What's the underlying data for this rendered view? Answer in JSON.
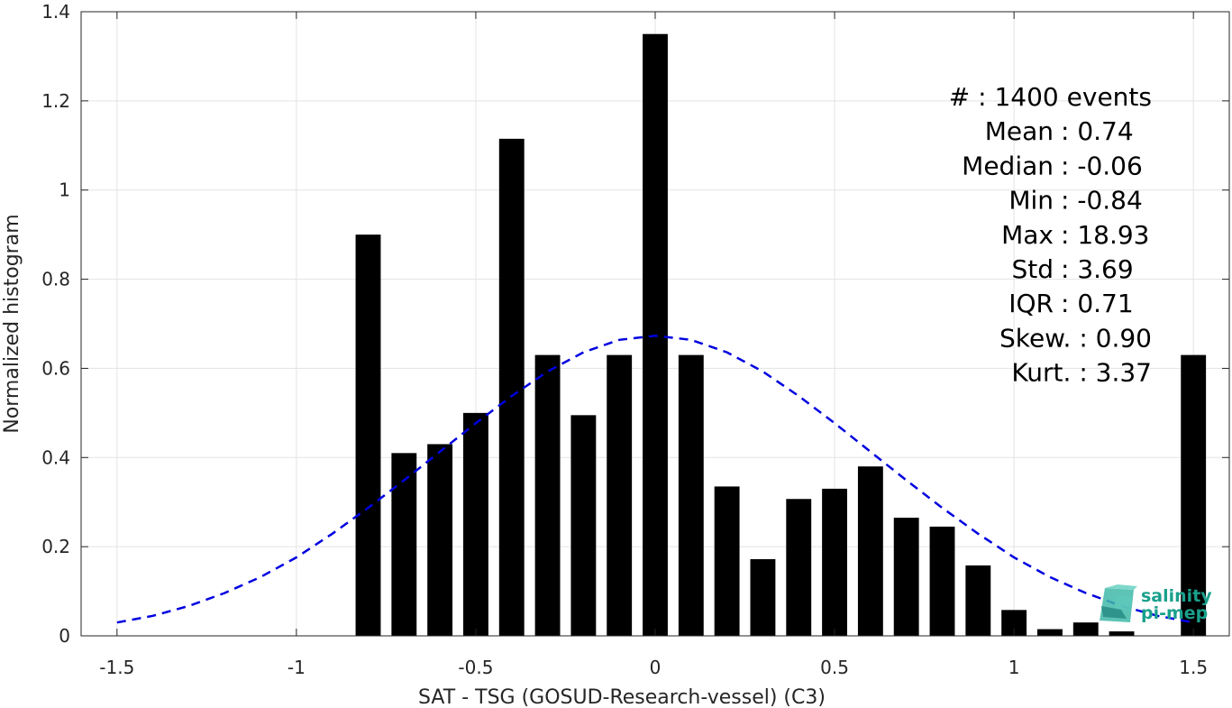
{
  "chart_data": {
    "type": "bar",
    "xlabel": "SAT - TSG (GOSUD-Research-vessel) (C3)",
    "ylabel": "Normalized histogram",
    "xlim": [
      -1.6,
      1.6
    ],
    "ylim": [
      0,
      1.4
    ],
    "xticks": [
      -1.5,
      -1,
      -0.5,
      0,
      0.5,
      1,
      1.5
    ],
    "xtick_labels": [
      "-1.5",
      "-1",
      "-0.5",
      "0",
      "0.5",
      "1",
      "1.5"
    ],
    "yticks": [
      0,
      0.2,
      0.4,
      0.6,
      0.8,
      1,
      1.2,
      1.4
    ],
    "ytick_labels": [
      "0",
      "0.2",
      "0.4",
      "0.6",
      "0.8",
      "1",
      "1.2",
      "1.4"
    ],
    "grid": true,
    "bar_width": 0.07,
    "bars": [
      {
        "x": -0.8,
        "y": 0.9
      },
      {
        "x": -0.7,
        "y": 0.41
      },
      {
        "x": -0.6,
        "y": 0.43
      },
      {
        "x": -0.5,
        "y": 0.5
      },
      {
        "x": -0.4,
        "y": 1.115
      },
      {
        "x": -0.3,
        "y": 0.63
      },
      {
        "x": -0.2,
        "y": 0.495
      },
      {
        "x": -0.1,
        "y": 0.63
      },
      {
        "x": 0.0,
        "y": 1.35
      },
      {
        "x": 0.1,
        "y": 0.63
      },
      {
        "x": 0.2,
        "y": 0.335
      },
      {
        "x": 0.3,
        "y": 0.172
      },
      {
        "x": 0.4,
        "y": 0.307
      },
      {
        "x": 0.5,
        "y": 0.33
      },
      {
        "x": 0.6,
        "y": 0.38
      },
      {
        "x": 0.7,
        "y": 0.265
      },
      {
        "x": 0.8,
        "y": 0.245
      },
      {
        "x": 0.9,
        "y": 0.158
      },
      {
        "x": 1.0,
        "y": 0.058
      },
      {
        "x": 1.1,
        "y": 0.015
      },
      {
        "x": 1.2,
        "y": 0.03
      },
      {
        "x": 1.3,
        "y": 0.01
      },
      {
        "x": 1.5,
        "y": 0.63
      }
    ],
    "fit_curve": {
      "style": "dashed",
      "color": "#0000e0",
      "points": [
        [
          -1.5,
          0.03
        ],
        [
          -1.4,
          0.045
        ],
        [
          -1.3,
          0.067
        ],
        [
          -1.2,
          0.096
        ],
        [
          -1.1,
          0.132
        ],
        [
          -1.0,
          0.176
        ],
        [
          -0.9,
          0.229
        ],
        [
          -0.8,
          0.287
        ],
        [
          -0.7,
          0.349
        ],
        [
          -0.6,
          0.413
        ],
        [
          -0.5,
          0.477
        ],
        [
          -0.4,
          0.538
        ],
        [
          -0.3,
          0.593
        ],
        [
          -0.2,
          0.636
        ],
        [
          -0.1,
          0.664
        ],
        [
          0.0,
          0.673
        ],
        [
          0.1,
          0.664
        ],
        [
          0.2,
          0.636
        ],
        [
          0.3,
          0.593
        ],
        [
          0.4,
          0.538
        ],
        [
          0.5,
          0.477
        ],
        [
          0.6,
          0.413
        ],
        [
          0.7,
          0.349
        ],
        [
          0.8,
          0.287
        ],
        [
          0.9,
          0.229
        ],
        [
          1.0,
          0.176
        ],
        [
          1.1,
          0.132
        ],
        [
          1.2,
          0.096
        ],
        [
          1.3,
          0.067
        ],
        [
          1.4,
          0.045
        ],
        [
          1.5,
          0.03
        ]
      ]
    },
    "bar_color": "#000000",
    "stats": [
      {
        "text": "#  : 1400 events",
        "anchor": "right"
      },
      {
        "text": "Mean : 0.74",
        "anchor": "colon"
      },
      {
        "text": "Median : -0.06",
        "anchor": "colon"
      },
      {
        "text": "Min : -0.84",
        "anchor": "colon"
      },
      {
        "text": "Max : 18.93",
        "anchor": "colon"
      },
      {
        "text": "Std : 3.69",
        "anchor": "colon"
      },
      {
        "text": "IQR : 0.71",
        "anchor": "colon"
      },
      {
        "text": "Skew. : 0.90",
        "anchor": "right"
      },
      {
        "text": "Kurt. : 3.37",
        "anchor": "right"
      }
    ]
  },
  "logo": {
    "line1": "salinity",
    "line2": "pi-mep",
    "color": "#1aa08c"
  }
}
